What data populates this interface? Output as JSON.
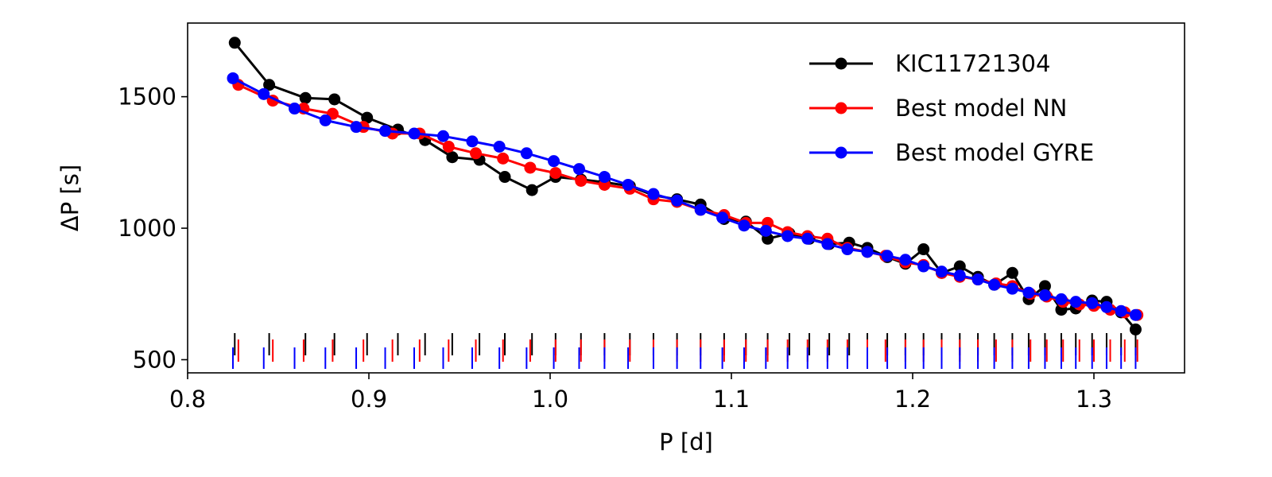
{
  "chart_data": {
    "type": "line",
    "xlabel": "P [d]",
    "ylabel": "ΔP [s]",
    "xlim": [
      0.8,
      1.35
    ],
    "ylim": [
      450,
      1780
    ],
    "xticks": [
      {
        "value": 0.8,
        "label": "0.8"
      },
      {
        "value": 0.9,
        "label": "0.9"
      },
      {
        "value": 1.0,
        "label": "1.0"
      },
      {
        "value": 1.1,
        "label": "1.1"
      },
      {
        "value": 1.2,
        "label": "1.2"
      },
      {
        "value": 1.3,
        "label": "1.3"
      }
    ],
    "yticks": [
      {
        "value": 500,
        "label": "500"
      },
      {
        "value": 1000,
        "label": "1000"
      },
      {
        "value": 1500,
        "label": "1500"
      }
    ],
    "legend_position": "top-right",
    "series": [
      {
        "name": "KIC11721304",
        "color": "#000000",
        "x": [
          0.826,
          0.845,
          0.865,
          0.881,
          0.899,
          0.916,
          0.931,
          0.946,
          0.961,
          0.975,
          0.99,
          1.003,
          1.017,
          1.03,
          1.044,
          1.057,
          1.07,
          1.083,
          1.096,
          1.108,
          1.12,
          1.132,
          1.143,
          1.154,
          1.165,
          1.175,
          1.186,
          1.196,
          1.206,
          1.216,
          1.226,
          1.236,
          1.245,
          1.255,
          1.264,
          1.273,
          1.282,
          1.29,
          1.299,
          1.307,
          1.315,
          1.323
        ],
        "y": [
          1705,
          1545,
          1495,
          1490,
          1420,
          1375,
          1335,
          1270,
          1260,
          1195,
          1145,
          1195,
          1185,
          1175,
          1160,
          1125,
          1110,
          1090,
          1035,
          1025,
          960,
          980,
          960,
          940,
          945,
          925,
          890,
          865,
          920,
          830,
          855,
          815,
          785,
          830,
          730,
          780,
          690,
          695,
          725,
          720,
          680,
          615
        ]
      },
      {
        "name": "Best model NN",
        "color": "#ff0000",
        "x": [
          0.828,
          0.847,
          0.864,
          0.88,
          0.897,
          0.913,
          0.928,
          0.944,
          0.959,
          0.974,
          0.989,
          1.003,
          1.017,
          1.03,
          1.044,
          1.057,
          1.07,
          1.083,
          1.096,
          1.108,
          1.12,
          1.131,
          1.142,
          1.153,
          1.164,
          1.175,
          1.185,
          1.196,
          1.206,
          1.216,
          1.226,
          1.236,
          1.246,
          1.255,
          1.265,
          1.274,
          1.283,
          1.292,
          1.3,
          1.309,
          1.317,
          1.324
        ],
        "y": [
          1545,
          1485,
          1455,
          1435,
          1385,
          1360,
          1360,
          1310,
          1285,
          1265,
          1230,
          1210,
          1180,
          1165,
          1150,
          1110,
          1100,
          1070,
          1050,
          1020,
          1020,
          985,
          970,
          960,
          925,
          910,
          895,
          870,
          860,
          830,
          815,
          805,
          790,
          780,
          750,
          740,
          720,
          710,
          705,
          690,
          680,
          670
        ]
      },
      {
        "name": "Best model GYRE",
        "color": "#0000ff",
        "x": [
          0.825,
          0.842,
          0.859,
          0.876,
          0.893,
          0.909,
          0.925,
          0.941,
          0.957,
          0.972,
          0.987,
          1.002,
          1.016,
          1.03,
          1.043,
          1.057,
          1.07,
          1.083,
          1.095,
          1.107,
          1.119,
          1.131,
          1.142,
          1.153,
          1.164,
          1.175,
          1.186,
          1.196,
          1.206,
          1.216,
          1.226,
          1.236,
          1.245,
          1.255,
          1.264,
          1.273,
          1.282,
          1.29,
          1.299,
          1.307,
          1.315,
          1.323
        ],
        "y": [
          1570,
          1510,
          1455,
          1410,
          1385,
          1370,
          1360,
          1350,
          1330,
          1310,
          1285,
          1255,
          1225,
          1195,
          1165,
          1130,
          1105,
          1070,
          1040,
          1010,
          990,
          970,
          960,
          940,
          920,
          910,
          895,
          880,
          855,
          835,
          820,
          805,
          785,
          770,
          755,
          745,
          730,
          720,
          715,
          700,
          685,
          670
        ]
      }
    ]
  }
}
